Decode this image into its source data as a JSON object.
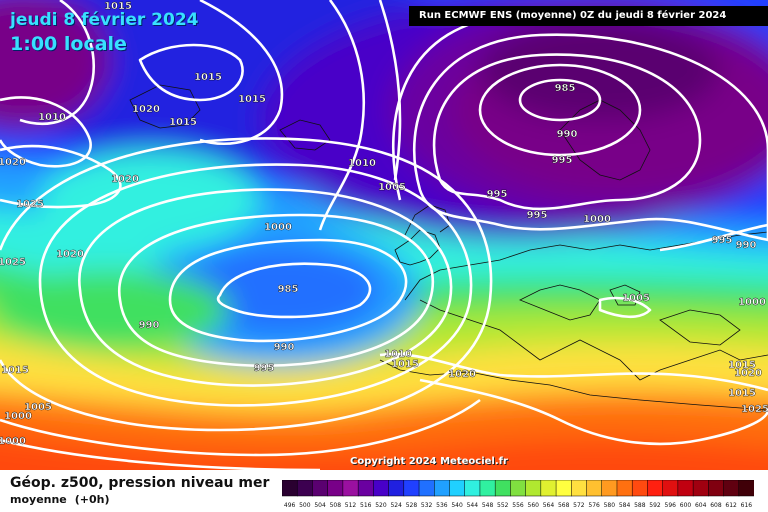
{
  "header": {
    "date": "jeudi 8 février 2024",
    "time": "1:00 locale",
    "run": "Run ECMWF ENS (moyenne) 0Z du jeudi 8 février 2024"
  },
  "copyright": "Copyright 2024 Meteociel.fr",
  "footer": {
    "title": "Géop. z500, pression niveau mer",
    "subtitle": "moyenne",
    "lead": "(+0h)"
  },
  "legend": {
    "values": [
      "496",
      "500",
      "504",
      "508",
      "512",
      "516",
      "520",
      "524",
      "528",
      "532",
      "536",
      "540",
      "544",
      "548",
      "552",
      "556",
      "560",
      "564",
      "568",
      "572",
      "576",
      "580",
      "584",
      "588",
      "592",
      "596",
      "600",
      "604",
      "608",
      "612",
      "616"
    ],
    "colors": [
      "#2a0030",
      "#3c0050",
      "#5a0070",
      "#780088",
      "#9a10a0",
      "#6a00a0",
      "#4800c8",
      "#2020e0",
      "#2040ff",
      "#2070ff",
      "#20a0ff",
      "#20d0ff",
      "#30f0e0",
      "#30f0a0",
      "#40e060",
      "#80e040",
      "#b0e830",
      "#e0f030",
      "#ffff40",
      "#ffe040",
      "#ffc030",
      "#ff9a20",
      "#ff7010",
      "#ff4a10",
      "#ff2010",
      "#e01010",
      "#c00010",
      "#a00010",
      "#800010",
      "#600010",
      "#400008"
    ]
  },
  "pressure_labels": [
    {
      "text": "1015"
    },
    {
      "text": "1010"
    },
    {
      "text": "1020"
    },
    {
      "text": "1015"
    },
    {
      "text": "1020"
    },
    {
      "text": "1015"
    },
    {
      "text": "1015"
    },
    {
      "text": "1020"
    },
    {
      "text": "1025"
    },
    {
      "text": "1020"
    },
    {
      "text": "1025"
    },
    {
      "text": "1010"
    },
    {
      "text": "1005"
    },
    {
      "text": "1000"
    },
    {
      "text": "985"
    },
    {
      "text": "990"
    },
    {
      "text": "990"
    },
    {
      "text": "995"
    },
    {
      "text": "985"
    },
    {
      "text": "990"
    },
    {
      "text": "995"
    },
    {
      "text": "995"
    },
    {
      "text": "995"
    },
    {
      "text": "1000"
    },
    {
      "text": "995"
    },
    {
      "text": "990"
    },
    {
      "text": "1005"
    },
    {
      "text": "1000"
    },
    {
      "text": "1010"
    },
    {
      "text": "1015"
    },
    {
      "text": "1020"
    },
    {
      "text": "1015"
    },
    {
      "text": "1005"
    },
    {
      "text": "1000"
    },
    {
      "text": "1000"
    },
    {
      "text": "1015"
    },
    {
      "text": "1020"
    },
    {
      "text": "1015"
    },
    {
      "text": "1025"
    }
  ]
}
